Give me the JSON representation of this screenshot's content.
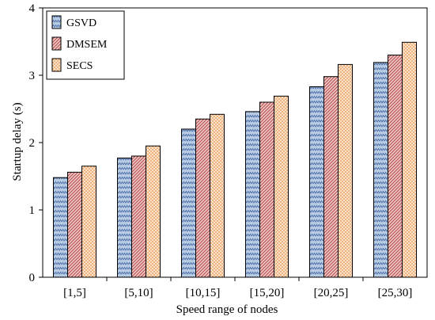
{
  "chart_data": {
    "type": "bar",
    "xlabel": "Speed range of nodes",
    "ylabel": "Startup delay (s)",
    "ylim": [
      0,
      4
    ],
    "yticks": [
      0,
      1,
      2,
      3,
      4
    ],
    "categories": [
      "[1,5]",
      "[5,10]",
      "[10,15]",
      "[15,20]",
      "[20,25]",
      "[25,30]"
    ],
    "series": [
      {
        "name": "GSVD",
        "values": [
          1.48,
          1.77,
          2.2,
          2.46,
          2.83,
          3.19
        ],
        "color": "#b8cce4",
        "pattern": "zigzag"
      },
      {
        "name": "DMSEM",
        "values": [
          1.56,
          1.8,
          2.35,
          2.6,
          2.98,
          3.3
        ],
        "color": "#e6b8b7",
        "pattern": "diagonal"
      },
      {
        "name": "SECS",
        "values": [
          1.65,
          1.95,
          2.42,
          2.69,
          3.16,
          3.49
        ],
        "color": "#fcd5b4",
        "pattern": "dots"
      }
    ],
    "legend_position": "top-left",
    "grid": false
  }
}
